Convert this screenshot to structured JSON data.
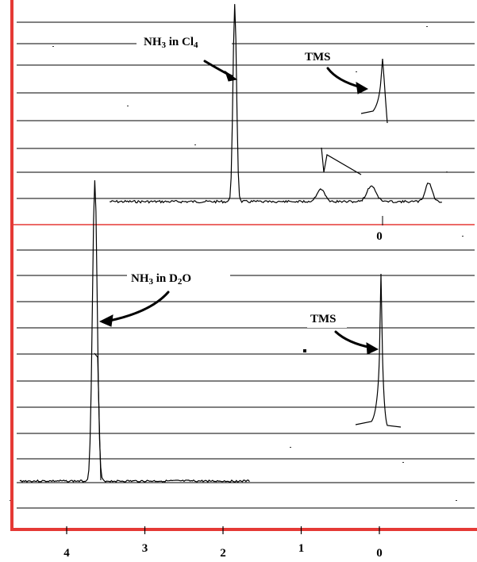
{
  "chart_data": {
    "type": "line",
    "xlabel": "",
    "ylabel": "",
    "x_reversed": true,
    "x_ticks": [
      4,
      3,
      2,
      1,
      0
    ],
    "x_tick_labels": [
      "4",
      "3",
      "2",
      "1",
      "0"
    ],
    "spectra": [
      {
        "panel": "top",
        "peaks": [
          {
            "label_parts": [
              "NH",
              "3",
              " in Cl",
              "4"
            ],
            "position_ppm": 1.85,
            "relative_height": 1.0
          },
          {
            "label": "TMS",
            "position_ppm": 0.0,
            "relative_height": 0.36
          }
        ],
        "baseline_range_ppm": [
          3.45,
          -0.8
        ],
        "marked_position_label": "0"
      },
      {
        "panel": "bottom",
        "peaks": [
          {
            "label_parts": [
              "NH",
              "3",
              " in D",
              "2",
              "O"
            ],
            "position_ppm": 3.65,
            "relative_height": 1.0
          },
          {
            "label": "TMS",
            "position_ppm": 0.0,
            "relative_height": 0.65
          }
        ],
        "baseline_range_ppm": [
          4.6,
          1.65
        ]
      }
    ]
  },
  "colors": {
    "axis": "#e53935",
    "divider": "#e53935",
    "grid": "#000000",
    "trace": "#000000"
  }
}
